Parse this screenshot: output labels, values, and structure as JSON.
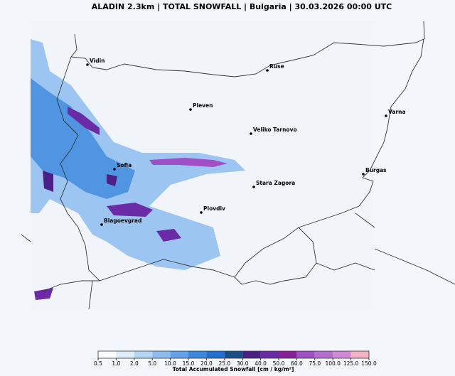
{
  "header": {
    "title": "ALADIN 2.3km | TOTAL SNOWFALL | Bulgaria | 30.03.2026 00:00 UTC"
  },
  "cities": [
    "Vidin",
    "Ruse",
    "Pleven",
    "Varna",
    "Veliko Tarnovo",
    "Sofia",
    "Burgas",
    "Stara Zagora",
    "Plovdiv",
    "Blagoevgrad"
  ],
  "colorbar": {
    "ticks": [
      "0.5",
      "1.0",
      "2.0",
      "5.0",
      "10.0",
      "15.0",
      "20.0",
      "25.0",
      "30.0",
      "40.0",
      "50.0",
      "60.0",
      "75.0",
      "100.0",
      "125.0",
      "150.0"
    ],
    "colors": [
      "#ffffff",
      "#dcecf9",
      "#b5d6f4",
      "#8dbdee",
      "#62a2e8",
      "#3d88df",
      "#2270cf",
      "#1c4f89",
      "#4a1f86",
      "#6b2aa6",
      "#8a219c",
      "#a04fc6",
      "#b36fd0",
      "#d089d6",
      "#f2b3c2"
    ],
    "label": "Total Accumulated Snowfall [cm / kg/m²]"
  }
}
